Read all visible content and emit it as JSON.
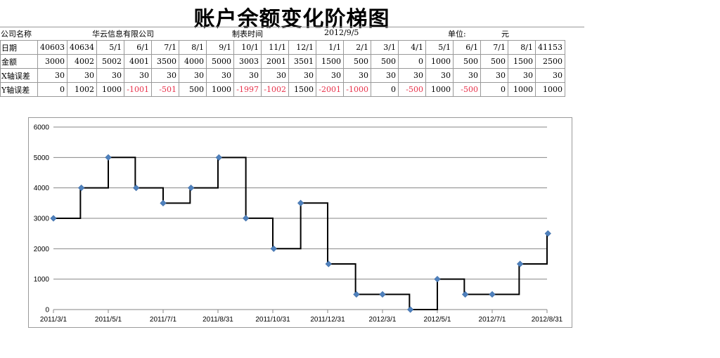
{
  "header": {
    "title": "账户余额变化阶梯图",
    "company_label": "公司名称",
    "company_name": "华云信息有限公司",
    "date_label": "制表时间",
    "date_value": "2012/9/5",
    "unit_label": "单位:",
    "unit_value": "元"
  },
  "table": {
    "rows": [
      {
        "label": "日期",
        "cells": [
          "40603",
          "40634",
          "5/1",
          "6/1",
          "7/1",
          "8/1",
          "9/1",
          "10/1",
          "11/1",
          "12/1",
          "1/1",
          "2/1",
          "3/1",
          "4/1",
          "5/1",
          "6/1",
          "7/1",
          "8/1",
          "41153"
        ]
      },
      {
        "label": "金额",
        "cells": [
          "3000",
          "4002",
          "5002",
          "4001",
          "3500",
          "4000",
          "5000",
          "3003",
          "2001",
          "3501",
          "1500",
          "500",
          "500",
          "0",
          "1000",
          "500",
          "500",
          "1500",
          "2500"
        ]
      },
      {
        "label": "X轴误差",
        "cells": [
          "30",
          "30",
          "30",
          "30",
          "30",
          "30",
          "30",
          "30",
          "30",
          "30",
          "30",
          "30",
          "30",
          "30",
          "30",
          "30",
          "30",
          "30",
          "30"
        ]
      },
      {
        "label": "Y轴误差",
        "cells": [
          "0",
          "1002",
          "1000",
          "-1001",
          "-501",
          "500",
          "1000",
          "-1997",
          "-1002",
          "1500",
          "-2001",
          "-1000",
          "0",
          "-500",
          "1000",
          "-500",
          "0",
          "1000",
          "1000"
        ]
      }
    ]
  },
  "chart_data": {
    "type": "line",
    "title": "",
    "xlabel": "",
    "ylabel": "",
    "x": [
      "2011/3/1",
      "2011/4/1",
      "2011/5/1",
      "2011/6/1",
      "2011/7/1",
      "2011/8/1",
      "2011/9/1",
      "2011/10/1",
      "2011/11/1",
      "2011/12/1",
      "2012/1/1",
      "2012/2/1",
      "2012/3/1",
      "2012/4/1",
      "2012/5/1",
      "2012/6/1",
      "2012/7/1",
      "2012/8/1",
      "2012/9/1"
    ],
    "series": [
      {
        "values": [
          3000,
          4002,
          5002,
          4001,
          3500,
          4000,
          5000,
          3003,
          2001,
          3501,
          1500,
          500,
          500,
          0,
          1000,
          500,
          500,
          1500,
          2500
        ]
      }
    ],
    "step_x_error_days": 30,
    "ylim": [
      0,
      6000
    ],
    "yticks": [
      "0",
      "1000",
      "2000",
      "3000",
      "4000",
      "5000",
      "6000"
    ],
    "xticks": [
      "2011/3/1",
      "2011/5/1",
      "2011/7/1",
      "2011/8/31",
      "2011/10/31",
      "2011/12/31",
      "2012/3/1",
      "2012/5/1",
      "2012/7/1",
      "2012/8/31"
    ],
    "grid": "horizontal",
    "colors": {
      "marker": "#4f81bd",
      "step_line": "#000000",
      "grid": "#868686"
    }
  }
}
